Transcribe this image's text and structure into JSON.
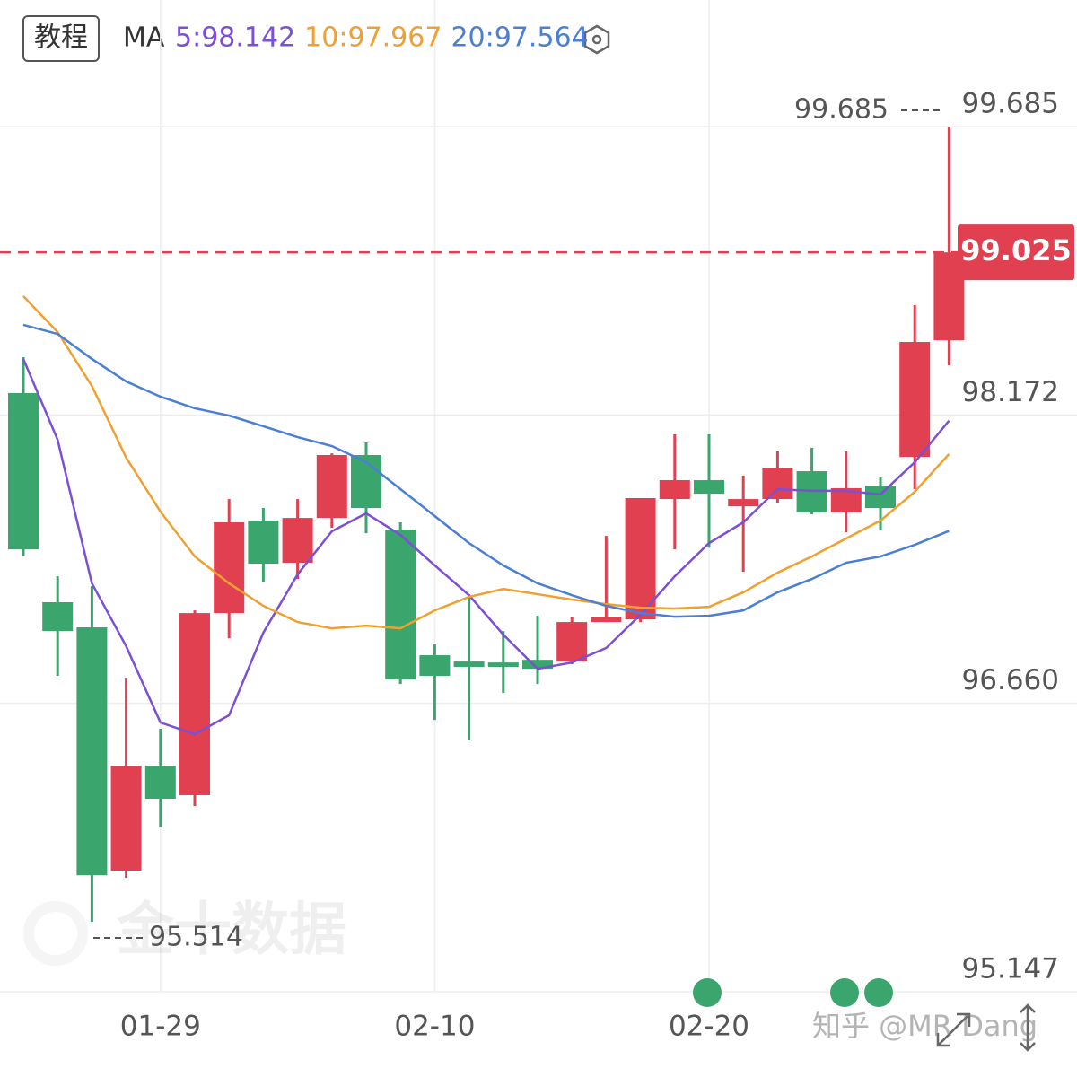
{
  "chart_data": {
    "type": "candlestick",
    "button": "教程",
    "indicator": "MA",
    "categories": [
      null,
      null,
      null,
      null,
      "01-29",
      null,
      null,
      null,
      null,
      null,
      null,
      null,
      "02-10",
      null,
      null,
      null,
      null,
      null,
      null,
      null,
      "02-20",
      null,
      null,
      null,
      null,
      null,
      null,
      null
    ],
    "open": [
      98.287,
      97.19,
      97.058,
      95.782,
      96.333,
      96.178,
      97.133,
      97.618,
      97.397,
      97.632,
      97.962,
      97.571,
      96.912,
      96.879,
      96.874,
      96.888,
      96.879,
      97.086,
      97.1,
      97.731,
      97.83,
      97.693,
      97.731,
      97.877,
      97.661,
      97.802,
      97.952,
      98.564
    ],
    "high": [
      98.475,
      97.326,
      97.274,
      96.794,
      96.526,
      97.147,
      97.731,
      97.684,
      97.731,
      97.971,
      98.028,
      97.609,
      96.973,
      97.232,
      97.039,
      97.119,
      97.11,
      97.538,
      97.736,
      98.07,
      98.07,
      97.854,
      97.981,
      98.0,
      97.981,
      97.849,
      98.748,
      99.685
    ],
    "low": [
      97.43,
      96.804,
      95.514,
      95.744,
      96.008,
      96.121,
      97.001,
      97.298,
      97.312,
      97.58,
      97.552,
      96.761,
      96.573,
      96.465,
      96.714,
      96.761,
      96.865,
      97.086,
      97.086,
      97.467,
      97.476,
      97.35,
      97.712,
      97.651,
      97.557,
      97.566,
      97.783,
      98.433
    ],
    "close": [
      97.467,
      97.039,
      95.758,
      96.333,
      96.159,
      97.133,
      97.609,
      97.392,
      97.632,
      97.962,
      97.684,
      96.785,
      96.804,
      96.851,
      96.851,
      96.841,
      97.086,
      97.11,
      97.736,
      97.83,
      97.759,
      97.731,
      97.896,
      97.661,
      97.788,
      97.684,
      98.555,
      99.025
    ],
    "up_color": "#e0404f",
    "down_color": "#3aa56c",
    "series": [
      {
        "name": "5:98.142",
        "color": "#7b4fd6",
        "values": [
          98.466,
          98.042,
          97.289,
          96.959,
          96.559,
          96.498,
          96.597,
          97.03,
          97.336,
          97.562,
          97.656,
          97.543,
          97.383,
          97.227,
          97.02,
          96.841,
          96.874,
          96.95,
          97.124,
          97.326,
          97.5,
          97.609,
          97.783,
          97.774,
          97.774,
          97.755,
          97.924,
          98.142
        ]
      },
      {
        "name": "10:97.967",
        "color": "#f0a030",
        "values": [
          98.795,
          98.607,
          98.324,
          97.948,
          97.665,
          97.43,
          97.289,
          97.171,
          97.086,
          97.053,
          97.067,
          97.053,
          97.147,
          97.218,
          97.26,
          97.232,
          97.204,
          97.18,
          97.161,
          97.157,
          97.166,
          97.242,
          97.345,
          97.43,
          97.524,
          97.618,
          97.769,
          97.967
        ]
      },
      {
        "name": "20:97.564",
        "color": "#4a7fd4",
        "values": [
          98.645,
          98.597,
          98.466,
          98.348,
          98.268,
          98.207,
          98.169,
          98.113,
          98.056,
          98.009,
          97.924,
          97.783,
          97.642,
          97.5,
          97.383,
          97.289,
          97.227,
          97.171,
          97.133,
          97.114,
          97.119,
          97.147,
          97.242,
          97.312,
          97.397,
          97.43,
          97.491,
          97.564
        ]
      }
    ],
    "ylim": [
      95.147,
      99.972
    ],
    "yticks": [
      95.147,
      {
        "value": 96.66,
        "label": "96.660"
      },
      98.172,
      99.685
    ],
    "grid": true,
    "high_label": 99.685,
    "low_label": 95.514,
    "last_price": 99.025,
    "watermarks": [
      "金十数据",
      "知乎 @MR Dang"
    ]
  }
}
